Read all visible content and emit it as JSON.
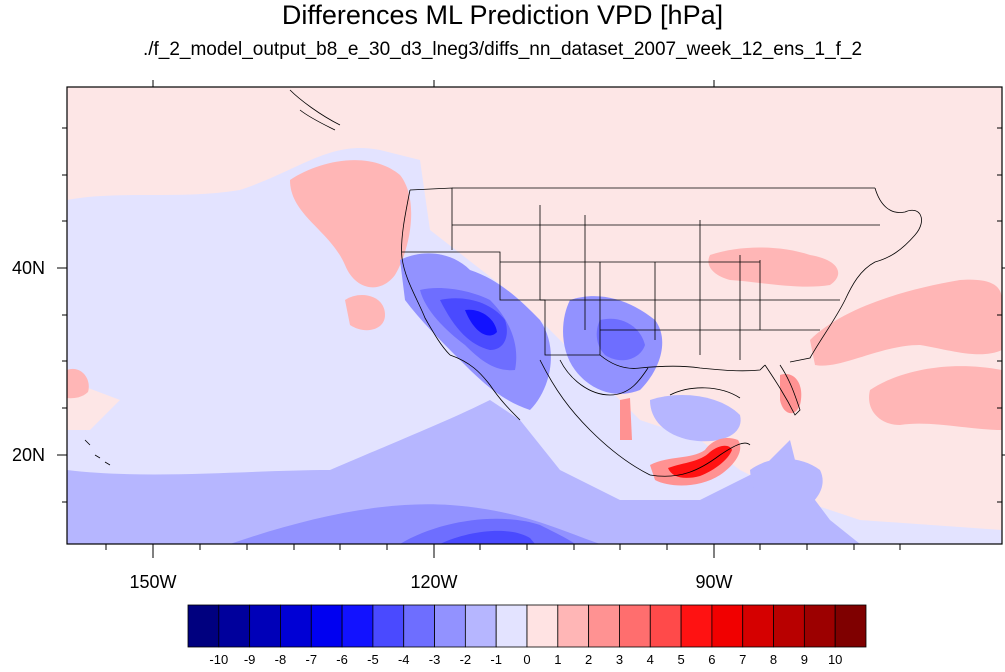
{
  "header": {
    "title": "Differences ML Prediction VPD [hPa]",
    "subtitle": "./f_2_model_output_b8_e_30_d3_lneg3/diffs_nn_dataset_2007_week_12_ens_1_f_2"
  },
  "axes": {
    "lat_labels": [
      "40N",
      "20N"
    ],
    "lon_labels": [
      "150W",
      "120W",
      "90W"
    ]
  },
  "colorbar": {
    "colors": [
      "#00007f",
      "#00009c",
      "#0000b8",
      "#0000d5",
      "#0000f1",
      "#1212ff",
      "#4a4aff",
      "#6e6eff",
      "#9292ff",
      "#b6b6ff",
      "#e3e3ff",
      "#ffe3e3",
      "#ffb6b6",
      "#ff9292",
      "#ff6e6e",
      "#ff4a4a",
      "#ff1212",
      "#f10000",
      "#d50000",
      "#b80000",
      "#9c0000",
      "#7f0000"
    ],
    "labels": [
      "-10",
      "-9",
      "-8",
      "-7",
      "-6",
      "-5",
      "-4",
      "-3",
      "-2",
      "-1",
      "0",
      "1",
      "2",
      "3",
      "4",
      "5",
      "6",
      "7",
      "8",
      "9",
      "10"
    ]
  }
}
